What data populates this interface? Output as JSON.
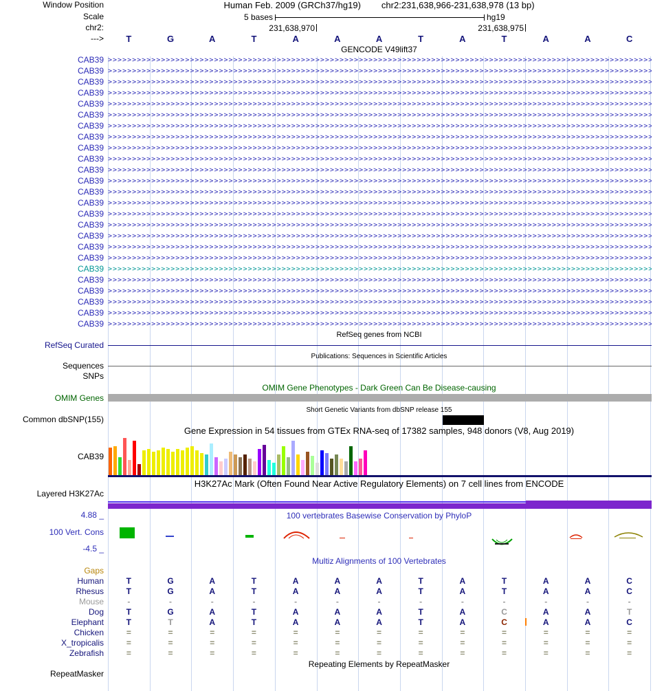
{
  "header": {
    "window_position_label": "Window Position",
    "assembly": "Human Feb. 2009 (GRCh37/hg19)",
    "position": "chr2:231,638,966-231,638,978 (13 bp)",
    "scale_label": "Scale",
    "scale_text": "5 bases",
    "genome": "hg19",
    "chrom_label": "chr2:",
    "coords": [
      "231,638,970",
      "231,638,975"
    ],
    "strand_label": "--->",
    "bases": [
      "T",
      "G",
      "A",
      "T",
      "A",
      "A",
      "A",
      "T",
      "A",
      "T",
      "A",
      "A",
      "C"
    ]
  },
  "gencode": {
    "title": "GENCODE V49lift37",
    "gene_label": "CAB39",
    "row_count": 25,
    "highlight_index": 19,
    "row_color": "#2B2BB7",
    "highlight_color": "#009695"
  },
  "refseq": {
    "title": "RefSeq genes from NCBI",
    "label": "RefSeq Curated"
  },
  "publications": {
    "title": "Publications: Sequences in Scientific Articles",
    "label": "Sequences"
  },
  "snps": {
    "label": "SNPs"
  },
  "omim": {
    "title": "OMIM Gene Phenotypes - Dark Green Can Be Disease-causing",
    "label": "OMIM Genes",
    "text_color": "#006400",
    "bar_color": "#ACACAC"
  },
  "dbsnp": {
    "title": "Short Genetic Variants from dbSNP release 155",
    "label": "Common dbSNP(155)",
    "bar_color": "#000000"
  },
  "gtex": {
    "title": "Gene Expression in 54 tissues from GTEx RNA-seq of 17382 samples, 948 donors (V8, Aug 2019)",
    "label": "CAB39",
    "baseline_color": "#11116B",
    "bars": [
      [
        "#FF6600",
        40
      ],
      [
        "#FFAA00",
        42
      ],
      [
        "#33DD33",
        26
      ],
      [
        "#FF5555",
        54
      ],
      [
        "#FFAA99",
        22
      ],
      [
        "#FF0000",
        50
      ],
      [
        "#AA0000",
        16
      ],
      [
        "#EEEE00",
        36
      ],
      [
        "#EEEE00",
        38
      ],
      [
        "#EEEE00",
        34
      ],
      [
        "#EEEE00",
        36
      ],
      [
        "#EEEE00",
        40
      ],
      [
        "#EEEE00",
        38
      ],
      [
        "#EEEE00",
        34
      ],
      [
        "#EEEE00",
        38
      ],
      [
        "#EEEE00",
        36
      ],
      [
        "#EEEE00",
        40
      ],
      [
        "#EEEE00",
        42
      ],
      [
        "#EEEE00",
        36
      ],
      [
        "#EEEE00",
        32
      ],
      [
        "#33CCCC",
        30
      ],
      [
        "#AAEEFF",
        46
      ],
      [
        "#CC66FF",
        26
      ],
      [
        "#FFCCCC",
        20
      ],
      [
        "#CCCCFF",
        24
      ],
      [
        "#EEBB77",
        34
      ],
      [
        "#CC9955",
        30
      ],
      [
        "#8B7355",
        26
      ],
      [
        "#552200",
        30
      ],
      [
        "#BB9988",
        24
      ],
      [
        "#FFCCCC",
        20
      ],
      [
        "#9900FF",
        38
      ],
      [
        "#660099",
        44
      ],
      [
        "#22FFDD",
        22
      ],
      [
        "#22FFDD",
        18
      ],
      [
        "#AABB66",
        30
      ],
      [
        "#99FF00",
        42
      ],
      [
        "#99BB88",
        26
      ],
      [
        "#AAAAFF",
        50
      ],
      [
        "#FFD700",
        30
      ],
      [
        "#FFAAFF",
        22
      ],
      [
        "#995522",
        34
      ],
      [
        "#AAFF99",
        28
      ],
      [
        "#DDDDDD",
        18
      ],
      [
        "#0000FF",
        36
      ],
      [
        "#7777FF",
        32
      ],
      [
        "#555522",
        24
      ],
      [
        "#778855",
        30
      ],
      [
        "#FFDD99",
        24
      ],
      [
        "#AAAAAA",
        20
      ],
      [
        "#006600",
        42
      ],
      [
        "#FF66FF",
        20
      ],
      [
        "#FF5599",
        24
      ],
      [
        "#FF00BB",
        36
      ]
    ]
  },
  "h3k27ac": {
    "title": "H3K27Ac Mark (Often Found Near Active Regulatory Elements) on 7 cell lines from ENCODE",
    "label": "Layered H3K27Ac",
    "band_color": "#7D26CD",
    "line_color": "#5533EE"
  },
  "phylop": {
    "title": "100 vertebrates Basewise Conservation by PhyloP",
    "label": "100 Vert. Cons",
    "max_label": "4.88 _",
    "min_label": "-4.5 _",
    "text_color": "#2E2EB8"
  },
  "multiz": {
    "title": "Multiz Alignments of 100 Vertebrates",
    "default_color": "#14147A",
    "rows": [
      {
        "name": "gaps",
        "label": "Gaps",
        "label_color": "#B8860B",
        "tokens": [
          "",
          "",
          "",
          "",
          "",
          "",
          "",
          "",
          "",
          "",
          "",
          "",
          ""
        ]
      },
      {
        "name": "human",
        "label": "Human",
        "tokens": [
          "T",
          "G",
          "A",
          "T",
          "A",
          "A",
          "A",
          "T",
          "A",
          "T",
          "A",
          "A",
          "C"
        ]
      },
      {
        "name": "rhesus",
        "label": "Rhesus",
        "tokens": [
          "T",
          "G",
          "A",
          "T",
          "A",
          "A",
          "A",
          "T",
          "A",
          "T",
          "A",
          "A",
          "C"
        ]
      },
      {
        "name": "mouse",
        "label": "Mouse",
        "label_color": "#9A9A9A",
        "token_color": "#9A9A9A",
        "tokens": [
          "-",
          "-",
          "-",
          "-",
          "-",
          "-",
          "-",
          "-",
          "-",
          "-",
          "-",
          "-",
          "-"
        ]
      },
      {
        "name": "dog",
        "label": "Dog",
        "tokens": [
          "T",
          "G",
          "A",
          "T",
          "A",
          "A",
          "A",
          "T",
          "A",
          "C",
          "A",
          "A",
          "T"
        ],
        "colors": {
          "9": "#9A9A9A",
          "12": "#9A9A9A"
        }
      },
      {
        "name": "elephant",
        "label": "Elephant",
        "tokens": [
          "T",
          "T",
          "A",
          "T",
          "A",
          "A",
          "A",
          "T",
          "A",
          "C",
          "A",
          "A",
          "C"
        ],
        "colors": {
          "1": "#9A9A9A",
          "9": "#8B2500"
        },
        "insert_after": 9,
        "insert_color": "#FF7F00"
      },
      {
        "name": "chicken",
        "label": "Chicken",
        "token_color": "#8F8F75",
        "tokens": [
          "=",
          "=",
          "=",
          "=",
          "=",
          "=",
          "=",
          "=",
          "=",
          "=",
          "=",
          "=",
          "="
        ]
      },
      {
        "name": "x_tropicalis",
        "label": "X_tropicalis",
        "token_color": "#8F8F75",
        "tokens": [
          "=",
          "=",
          "=",
          "=",
          "=",
          "=",
          "=",
          "=",
          "=",
          "=",
          "=",
          "=",
          "="
        ]
      },
      {
        "name": "zebrafish",
        "label": "Zebrafish",
        "token_color": "#8F8F75",
        "tokens": [
          "=",
          "=",
          "=",
          "=",
          "=",
          "=",
          "=",
          "=",
          "=",
          "=",
          "=",
          "=",
          "="
        ]
      }
    ]
  },
  "repeatmasker": {
    "title": "Repeating Elements by RepeatMasker",
    "label": "RepeatMasker"
  }
}
